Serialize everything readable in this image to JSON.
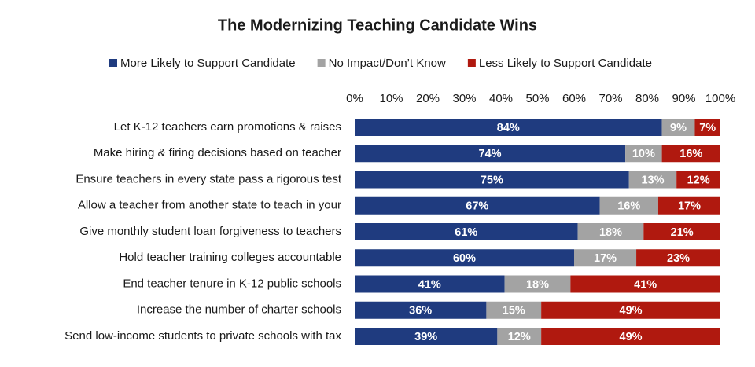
{
  "chart_data": {
    "type": "stacked-bar-horizontal",
    "title": "The Modernizing Teaching Candidate Wins",
    "categories": [
      "Let K-12 teachers earn promotions & raises",
      "Make hiring & firing decisions based on teacher",
      "Ensure teachers in every state pass a rigorous test",
      "Allow a teacher from another state to teach in your",
      "Give monthly student loan forgiveness to teachers",
      "Hold teacher training colleges accountable ",
      "End teacher tenure in K-12 public schools",
      "Increase the number of charter schools",
      "Send low-income students to private schools with tax"
    ],
    "series": [
      {
        "name": "More Likely to Support Candidate",
        "color": "#1f3b7f",
        "values": [
          84,
          74,
          75,
          67,
          61,
          60,
          41,
          36,
          39
        ],
        "value_labels": [
          "84%",
          "74%",
          "75%",
          "67%",
          "61%",
          "60%",
          "41%",
          "36%",
          "39%"
        ]
      },
      {
        "name": "No Impact/Don’t Know",
        "color": "#a3a3a3",
        "values": [
          9,
          10,
          13,
          16,
          18,
          17,
          18,
          15,
          12
        ],
        "value_labels": [
          "9%",
          "10%",
          "13%",
          "16%",
          "18%",
          "17%",
          "18%",
          "15%",
          "12%"
        ]
      },
      {
        "name": "Less Likely to Support Candidate",
        "color": "#b0190f",
        "values": [
          7,
          16,
          12,
          17,
          21,
          23,
          41,
          49,
          49
        ],
        "value_labels": [
          "7%",
          "16%",
          "12%",
          "17%",
          "21%",
          "23%",
          "41%",
          "49%",
          "49%"
        ]
      }
    ],
    "xlim": [
      0,
      100
    ],
    "xticks": [
      {
        "value": 0,
        "label": "0%"
      },
      {
        "value": 10,
        "label": "10%"
      },
      {
        "value": 20,
        "label": "20%"
      },
      {
        "value": 30,
        "label": "30%"
      },
      {
        "value": 40,
        "label": "40%"
      },
      {
        "value": 50,
        "label": "50%"
      },
      {
        "value": 60,
        "label": "60%"
      },
      {
        "value": 70,
        "label": "70%"
      },
      {
        "value": 80,
        "label": "80%"
      },
      {
        "value": 90,
        "label": "90%"
      },
      {
        "value": 100,
        "label": "100%"
      }
    ],
    "legend": "top",
    "grid": false
  }
}
